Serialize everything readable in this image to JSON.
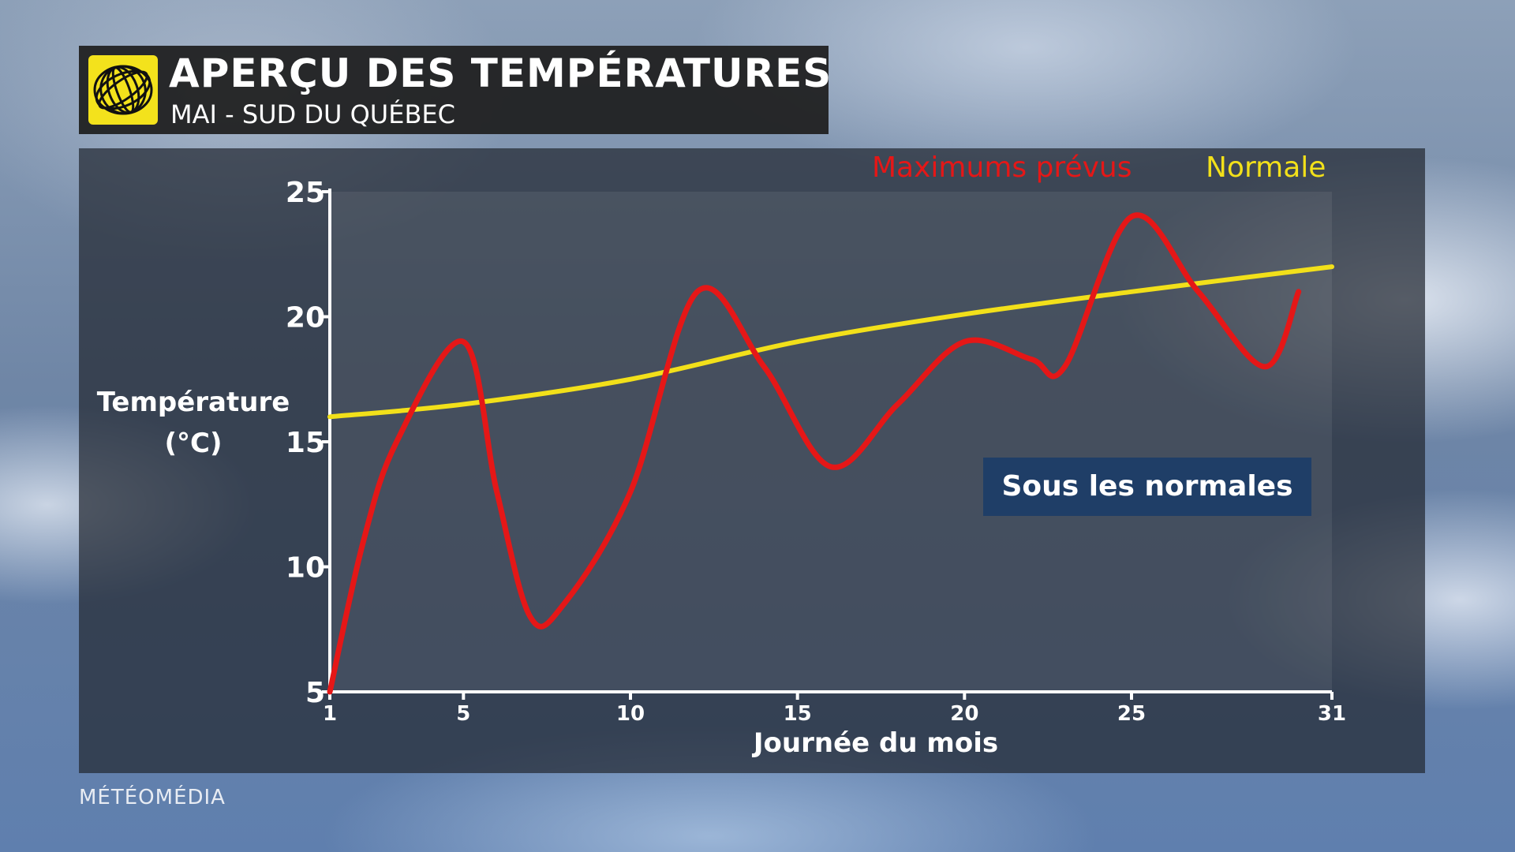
{
  "header": {
    "title": "APERÇU DES TEMPÉRATURES",
    "subtitle": "MAI - SUD DU QUÉBEC",
    "logo_icon": "meteomedia-globe-icon"
  },
  "brand": "MÉTÉOMÉDIA",
  "annotation": "Sous les normales",
  "colors": {
    "forecast": "#e51717",
    "normal": "#f2e01a",
    "annotation_bg": "#1f3e67",
    "logo_bg": "#f3e21c"
  },
  "chart_data": {
    "type": "line",
    "xlabel": "Journée du mois",
    "ylabel_line1": "Température",
    "ylabel_line2": "(°C)",
    "xlim": [
      1,
      31
    ],
    "ylim": [
      5,
      25
    ],
    "xticks": [
      1,
      5,
      10,
      15,
      20,
      25,
      31
    ],
    "yticks": [
      5,
      10,
      15,
      20,
      25
    ],
    "legend_position": "top-right",
    "grid": false,
    "series": [
      {
        "name": "Maximums prévus",
        "x": [
          1,
          2,
          3,
          5,
          6,
          7,
          8,
          10,
          12,
          14,
          16,
          18,
          20,
          22,
          23,
          25,
          27,
          29,
          30
        ],
        "values": [
          5,
          11,
          15,
          19,
          13,
          8,
          8.5,
          13,
          21,
          18,
          14,
          16.5,
          19,
          18.3,
          18,
          24,
          21,
          18,
          21
        ]
      },
      {
        "name": "Normale",
        "x": [
          1,
          5,
          10,
          15,
          20,
          25,
          31
        ],
        "values": [
          16,
          16.5,
          17.5,
          19,
          20.1,
          21,
          22
        ]
      }
    ]
  }
}
